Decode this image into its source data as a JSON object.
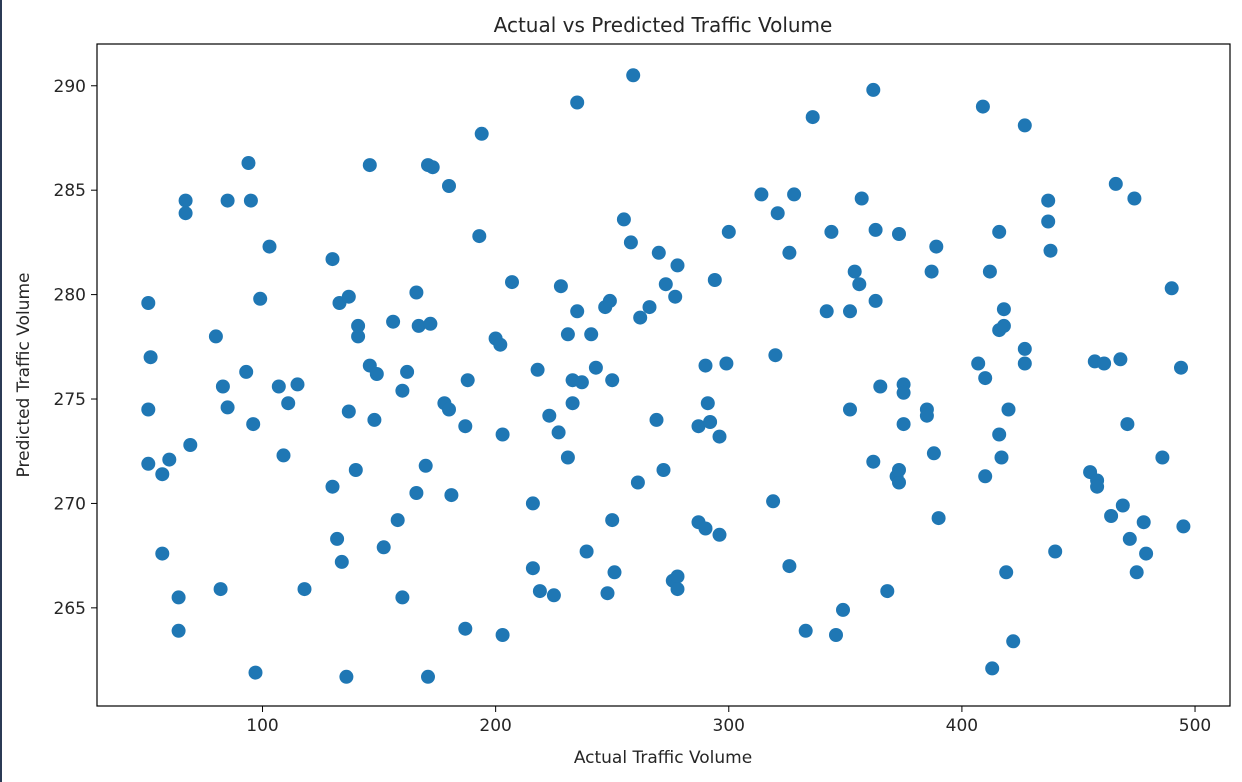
{
  "chart_data": {
    "type": "scatter",
    "title": "Actual vs Predicted Traffic Volume",
    "xlabel": "Actual Traffic Volume",
    "ylabel": "Predicted Traffic Volume",
    "xlim": [
      29,
      515
    ],
    "ylim": [
      260.3,
      292.0
    ],
    "xticks": [
      100,
      200,
      300,
      400,
      500
    ],
    "yticks": [
      265,
      270,
      275,
      280,
      285,
      290
    ],
    "grid": false,
    "legend": "none",
    "color": "#1f77b4",
    "points": [
      [
        51,
        279.6
      ],
      [
        51,
        274.5
      ],
      [
        51,
        271.9
      ],
      [
        52,
        277.0
      ],
      [
        57,
        271.4
      ],
      [
        57,
        267.6
      ],
      [
        60,
        272.1
      ],
      [
        64,
        265.5
      ],
      [
        64,
        263.9
      ],
      [
        67,
        284.5
      ],
      [
        67,
        283.9
      ],
      [
        69,
        272.8
      ],
      [
        80,
        278.0
      ],
      [
        82,
        265.9
      ],
      [
        83,
        275.6
      ],
      [
        85,
        284.5
      ],
      [
        85,
        274.6
      ],
      [
        93,
        276.3
      ],
      [
        94,
        286.3
      ],
      [
        95,
        284.5
      ],
      [
        96,
        273.8
      ],
      [
        97,
        261.9
      ],
      [
        99,
        279.8
      ],
      [
        103,
        282.3
      ],
      [
        107,
        275.6
      ],
      [
        109,
        272.3
      ],
      [
        111,
        274.8
      ],
      [
        115,
        275.7
      ],
      [
        118,
        265.9
      ],
      [
        130,
        281.7
      ],
      [
        130,
        270.8
      ],
      [
        132,
        268.3
      ],
      [
        133,
        279.6
      ],
      [
        134,
        267.2
      ],
      [
        136,
        261.7
      ],
      [
        137,
        274.4
      ],
      [
        137,
        279.9
      ],
      [
        140,
        271.6
      ],
      [
        141,
        278.0
      ],
      [
        141,
        278.5
      ],
      [
        146,
        276.6
      ],
      [
        146,
        286.2
      ],
      [
        148,
        274.0
      ],
      [
        149,
        276.2
      ],
      [
        152,
        267.9
      ],
      [
        156,
        278.7
      ],
      [
        158,
        269.2
      ],
      [
        160,
        275.4
      ],
      [
        160,
        265.5
      ],
      [
        162,
        276.3
      ],
      [
        166,
        280.1
      ],
      [
        166,
        270.5
      ],
      [
        167,
        278.5
      ],
      [
        170,
        271.8
      ],
      [
        171,
        286.2
      ],
      [
        171,
        261.7
      ],
      [
        172,
        278.6
      ],
      [
        173,
        286.1
      ],
      [
        178,
        274.8
      ],
      [
        180,
        274.5
      ],
      [
        180,
        285.2
      ],
      [
        181,
        270.4
      ],
      [
        187,
        273.7
      ],
      [
        187,
        264.0
      ],
      [
        188,
        275.9
      ],
      [
        193,
        282.8
      ],
      [
        194,
        287.7
      ],
      [
        200,
        277.9
      ],
      [
        202,
        277.6
      ],
      [
        203,
        273.3
      ],
      [
        203,
        263.7
      ],
      [
        207,
        280.6
      ],
      [
        216,
        270.0
      ],
      [
        216,
        266.9
      ],
      [
        218,
        276.4
      ],
      [
        219,
        265.8
      ],
      [
        223,
        274.2
      ],
      [
        225,
        265.6
      ],
      [
        227,
        273.4
      ],
      [
        228,
        280.4
      ],
      [
        231,
        278.1
      ],
      [
        231,
        272.2
      ],
      [
        233,
        275.9
      ],
      [
        233,
        274.8
      ],
      [
        235,
        289.2
      ],
      [
        235,
        279.2
      ],
      [
        237,
        275.8
      ],
      [
        239,
        267.7
      ],
      [
        241,
        278.1
      ],
      [
        243,
        276.5
      ],
      [
        247,
        279.4
      ],
      [
        248,
        265.7
      ],
      [
        249,
        279.7
      ],
      [
        250,
        275.9
      ],
      [
        250,
        269.2
      ],
      [
        251,
        266.7
      ],
      [
        255,
        283.6
      ],
      [
        258,
        282.5
      ],
      [
        259,
        290.5
      ],
      [
        261,
        271.0
      ],
      [
        262,
        278.9
      ],
      [
        266,
        279.4
      ],
      [
        269,
        274.0
      ],
      [
        270,
        282.0
      ],
      [
        272,
        271.6
      ],
      [
        273,
        280.5
      ],
      [
        276,
        266.3
      ],
      [
        277,
        279.9
      ],
      [
        278,
        281.4
      ],
      [
        278,
        266.5
      ],
      [
        278,
        265.9
      ],
      [
        287,
        269.1
      ],
      [
        287,
        273.7
      ],
      [
        290,
        276.6
      ],
      [
        290,
        268.8
      ],
      [
        291,
        274.8
      ],
      [
        292,
        273.9
      ],
      [
        294,
        280.7
      ],
      [
        296,
        273.2
      ],
      [
        296,
        268.5
      ],
      [
        299,
        276.7
      ],
      [
        300,
        283.0
      ],
      [
        314,
        284.8
      ],
      [
        319,
        270.1
      ],
      [
        320,
        277.1
      ],
      [
        321,
        283.9
      ],
      [
        326,
        267.0
      ],
      [
        326,
        282.0
      ],
      [
        328,
        284.8
      ],
      [
        333,
        263.9
      ],
      [
        336,
        288.5
      ],
      [
        342,
        279.2
      ],
      [
        344,
        283.0
      ],
      [
        346,
        263.7
      ],
      [
        349,
        264.9
      ],
      [
        352,
        274.5
      ],
      [
        352,
        279.2
      ],
      [
        354,
        281.1
      ],
      [
        356,
        280.5
      ],
      [
        357,
        284.6
      ],
      [
        362,
        272.0
      ],
      [
        362,
        289.8
      ],
      [
        363,
        283.1
      ],
      [
        363,
        279.7
      ],
      [
        365,
        275.6
      ],
      [
        368,
        265.8
      ],
      [
        372,
        271.3
      ],
      [
        373,
        271.0
      ],
      [
        373,
        271.6
      ],
      [
        373,
        282.9
      ],
      [
        375,
        273.8
      ],
      [
        375,
        275.7
      ],
      [
        375,
        275.3
      ],
      [
        385,
        274.5
      ],
      [
        385,
        274.2
      ],
      [
        387,
        281.1
      ],
      [
        388,
        272.4
      ],
      [
        389,
        282.3
      ],
      [
        390,
        269.3
      ],
      [
        407,
        276.7
      ],
      [
        409,
        289.0
      ],
      [
        410,
        271.3
      ],
      [
        410,
        276.0
      ],
      [
        412,
        281.1
      ],
      [
        413,
        262.1
      ],
      [
        416,
        278.3
      ],
      [
        416,
        283.0
      ],
      [
        416,
        273.3
      ],
      [
        417,
        272.2
      ],
      [
        418,
        279.3
      ],
      [
        418,
        278.5
      ],
      [
        419,
        266.7
      ],
      [
        420,
        274.5
      ],
      [
        422,
        263.4
      ],
      [
        427,
        288.1
      ],
      [
        427,
        277.4
      ],
      [
        427,
        276.7
      ],
      [
        437,
        284.5
      ],
      [
        437,
        283.5
      ],
      [
        438,
        282.1
      ],
      [
        440,
        267.7
      ],
      [
        455,
        271.5
      ],
      [
        457,
        276.8
      ],
      [
        458,
        271.1
      ],
      [
        458,
        270.8
      ],
      [
        461,
        276.7
      ],
      [
        464,
        269.4
      ],
      [
        466,
        285.3
      ],
      [
        468,
        276.9
      ],
      [
        469,
        269.9
      ],
      [
        471,
        273.8
      ],
      [
        472,
        268.3
      ],
      [
        474,
        284.6
      ],
      [
        475,
        266.7
      ],
      [
        478,
        269.1
      ],
      [
        479,
        267.6
      ],
      [
        486,
        272.2
      ],
      [
        490,
        280.3
      ],
      [
        494,
        276.5
      ],
      [
        495,
        268.9
      ]
    ]
  }
}
